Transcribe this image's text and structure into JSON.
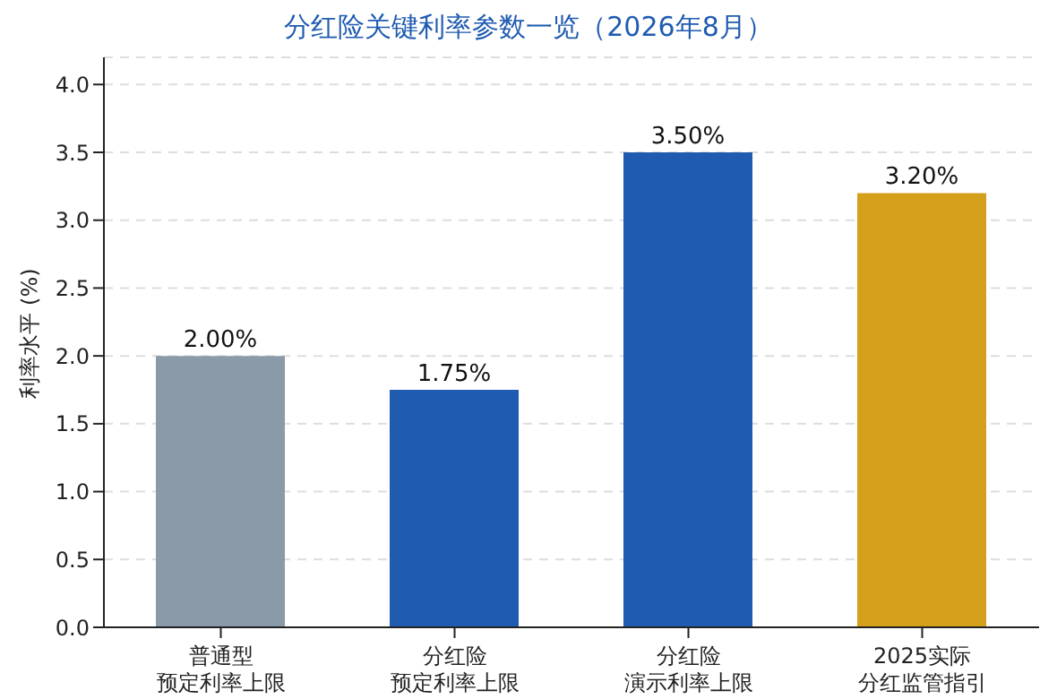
{
  "chart_data": {
    "type": "bar",
    "title": "分红险关键利率参数一览（2026年8月）",
    "ylabel": "利率水平 (%)",
    "categories": [
      "普通型预定利率上限",
      "分红险预定利率上限",
      "分红险演示利率上限",
      "2025实际分红监管指引"
    ],
    "values": [
      2.0,
      1.75,
      3.5,
      3.2
    ],
    "colors": [
      "#8a9aa9",
      "#1f5bb0",
      "#1f5bb0",
      "#d4a01c"
    ],
    "value_labels": [
      "2.00%",
      "1.75%",
      "3.50%",
      "3.20%"
    ],
    "ylim": [
      0,
      4.2
    ],
    "yticks": [
      {
        "value": 0,
        "label": "0.0"
      },
      {
        "value": 0.5,
        "label": "0.5"
      },
      {
        "value": 1,
        "label": "1.0"
      },
      {
        "value": 1.5,
        "label": "1.5"
      },
      {
        "value": 2,
        "label": "2.0"
      },
      {
        "value": 2.5,
        "label": "2.5"
      },
      {
        "value": 3,
        "label": "3.0"
      },
      {
        "value": 3.5,
        "label": "3.5"
      },
      {
        "value": 4,
        "label": "4.0"
      }
    ],
    "grid": "y"
  }
}
